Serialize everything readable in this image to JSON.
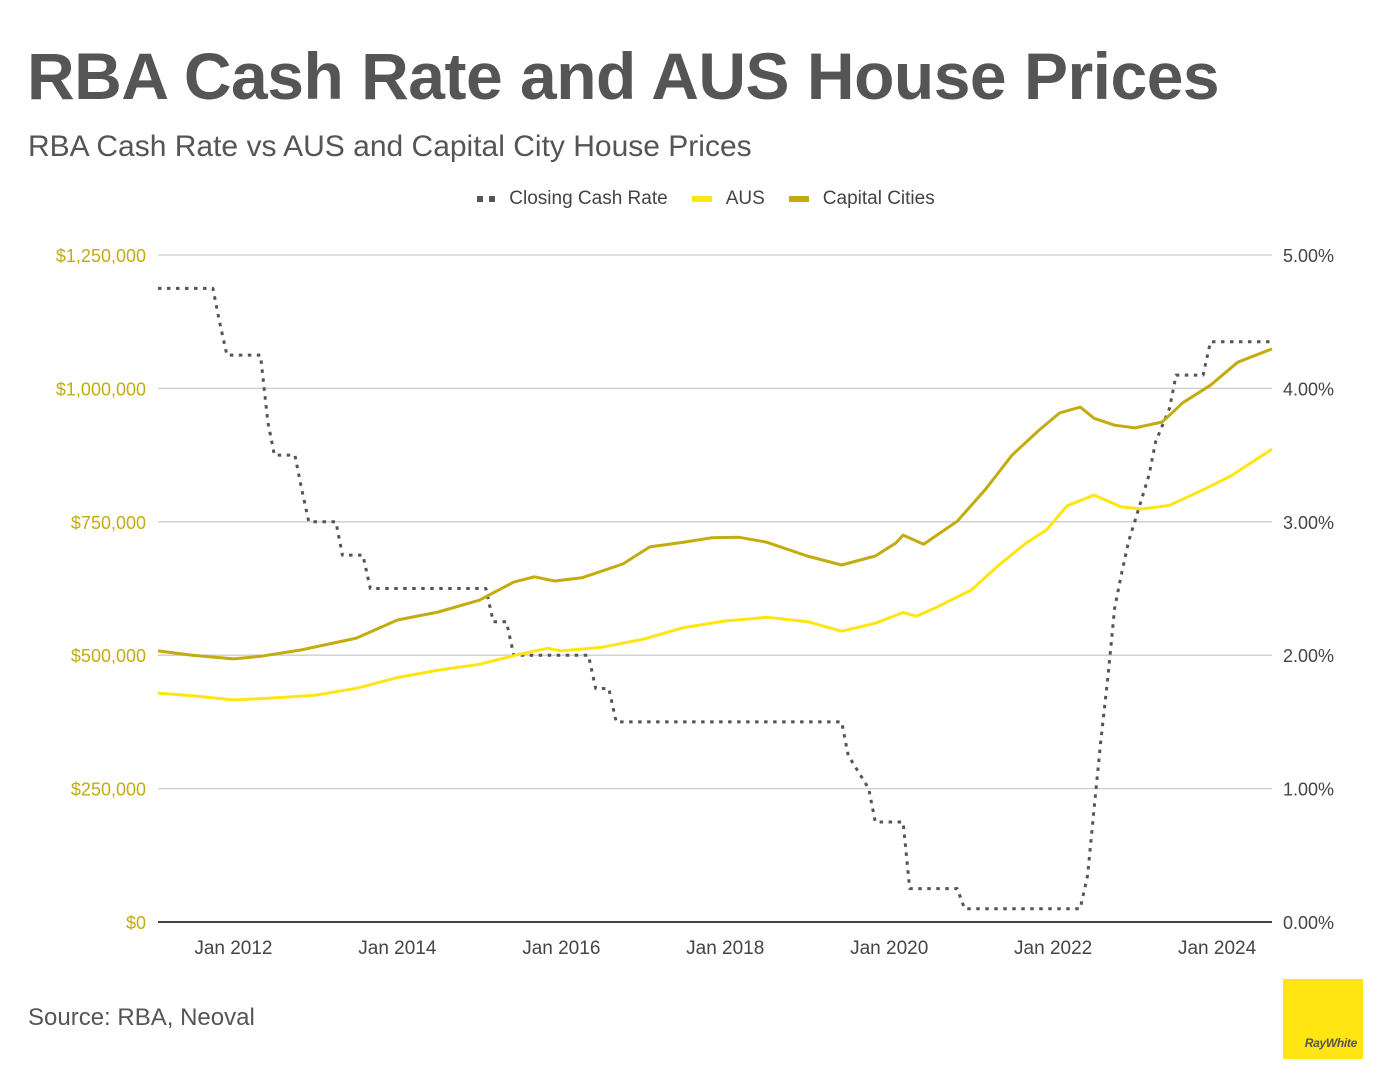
{
  "title": "RBA Cash Rate and AUS House Prices",
  "subtitle": "RBA Cash Rate vs AUS and Capital City House Prices",
  "source": "Source: RBA, Neoval",
  "logo_text": "RayWhite",
  "colors": {
    "cash_rate": "#555555",
    "aus": "#ffe512",
    "capital_cities": "#c3ac0f",
    "left_axis_text": "#c3ac0f",
    "right_axis_text": "#444444",
    "grid": "#cccccc"
  },
  "chart_data": {
    "type": "line",
    "title": "RBA Cash Rate vs AUS and Capital City House Prices",
    "xlabel": "",
    "ylabel_left": "",
    "ylabel_right": "",
    "x_range": [
      2011.08,
      2024.67
    ],
    "ylim_left": [
      0,
      1250000
    ],
    "ylim_right": [
      0,
      5
    ],
    "grid": true,
    "legend_position": "top",
    "x_ticks": [
      {
        "x": 2012,
        "label": "Jan 2012"
      },
      {
        "x": 2014,
        "label": "Jan 2014"
      },
      {
        "x": 2016,
        "label": "Jan 2016"
      },
      {
        "x": 2018,
        "label": "Jan 2018"
      },
      {
        "x": 2020,
        "label": "Jan 2020"
      },
      {
        "x": 2022,
        "label": "Jan 2022"
      },
      {
        "x": 2024,
        "label": "Jan 2024"
      }
    ],
    "y_ticks_left": [
      {
        "v": 0,
        "label": "$0"
      },
      {
        "v": 250000,
        "label": "$250,000"
      },
      {
        "v": 500000,
        "label": "$500,000"
      },
      {
        "v": 750000,
        "label": "$750,000"
      },
      {
        "v": 1000000,
        "label": "$1,000,000"
      },
      {
        "v": 1250000,
        "label": "$1,250,000"
      }
    ],
    "y_ticks_right": [
      {
        "v": 0,
        "label": "0.00%"
      },
      {
        "v": 1,
        "label": "1.00%"
      },
      {
        "v": 2,
        "label": "2.00%"
      },
      {
        "v": 3,
        "label": "3.00%"
      },
      {
        "v": 4,
        "label": "4.00%"
      },
      {
        "v": 5,
        "label": "5.00%"
      }
    ],
    "series": [
      {
        "name": "Closing Cash Rate",
        "axis": "right",
        "style": "dotted",
        "x": [
          2011.08,
          2011.75,
          2011.83,
          2011.92,
          2012.33,
          2012.42,
          2012.5,
          2012.75,
          2012.83,
          2012.92,
          2013.25,
          2013.33,
          2013.58,
          2013.67,
          2015.08,
          2015.17,
          2015.33,
          2015.42,
          2016.33,
          2016.42,
          2016.58,
          2016.67,
          2019.42,
          2019.5,
          2019.75,
          2019.83,
          2020.17,
          2020.25,
          2020.83,
          2020.92,
          2022.33,
          2022.42,
          2022.5,
          2022.58,
          2022.67,
          2022.75,
          2022.83,
          2022.92,
          2023.17,
          2023.25,
          2023.42,
          2023.5,
          2023.83,
          2023.92,
          2024.67
        ],
        "values": [
          4.75,
          4.75,
          4.5,
          4.25,
          4.25,
          3.75,
          3.5,
          3.5,
          3.25,
          3.0,
          3.0,
          2.75,
          2.75,
          2.5,
          2.5,
          2.25,
          2.25,
          2.0,
          2.0,
          1.75,
          1.75,
          1.5,
          1.5,
          1.25,
          1.0,
          0.75,
          0.75,
          0.25,
          0.25,
          0.1,
          0.1,
          0.35,
          0.85,
          1.35,
          1.85,
          2.35,
          2.6,
          2.85,
          3.35,
          3.6,
          3.85,
          4.1,
          4.1,
          4.35,
          4.35
        ]
      },
      {
        "name": "AUS",
        "axis": "left",
        "style": "solid",
        "x": [
          2011.08,
          2011.5,
          2012.0,
          2012.5,
          2013.0,
          2013.5,
          2014.0,
          2014.5,
          2015.0,
          2015.5,
          2015.83,
          2016.0,
          2016.5,
          2017.0,
          2017.5,
          2018.0,
          2018.5,
          2019.0,
          2019.42,
          2019.83,
          2020.17,
          2020.33,
          2020.58,
          2021.0,
          2021.33,
          2021.67,
          2021.92,
          2022.17,
          2022.5,
          2022.83,
          2023.08,
          2023.42,
          2023.83,
          2024.17,
          2024.67
        ],
        "values": [
          429000,
          424000,
          416000,
          420000,
          425000,
          438000,
          458000,
          472000,
          483000,
          502000,
          513000,
          508000,
          515000,
          530000,
          552000,
          564000,
          571000,
          563000,
          545000,
          560000,
          580000,
          573000,
          590000,
          622000,
          668000,
          710000,
          735000,
          780000,
          800000,
          778000,
          774000,
          781000,
          810000,
          836000,
          886000
        ]
      },
      {
        "name": "Capital Cities",
        "axis": "left",
        "style": "solid",
        "x": [
          2011.08,
          2011.5,
          2012.0,
          2012.33,
          2012.83,
          2013.5,
          2014.0,
          2014.5,
          2015.0,
          2015.42,
          2015.67,
          2015.92,
          2016.25,
          2016.75,
          2017.08,
          2017.5,
          2017.83,
          2018.17,
          2018.5,
          2019.0,
          2019.42,
          2019.83,
          2020.08,
          2020.17,
          2020.42,
          2020.83,
          2021.17,
          2021.5,
          2021.83,
          2022.08,
          2022.33,
          2022.5,
          2022.75,
          2023.0,
          2023.33,
          2023.58,
          2023.92,
          2024.25,
          2024.67
        ],
        "values": [
          508000,
          500000,
          493000,
          498000,
          510000,
          532000,
          566000,
          581000,
          603000,
          637000,
          647000,
          639000,
          645000,
          671000,
          703000,
          712000,
          720000,
          721000,
          712000,
          686000,
          669000,
          686000,
          710000,
          725000,
          708000,
          751000,
          810000,
          875000,
          922000,
          954000,
          965000,
          944000,
          931000,
          926000,
          937000,
          973000,
          1006000,
          1049000,
          1074000
        ]
      }
    ]
  }
}
